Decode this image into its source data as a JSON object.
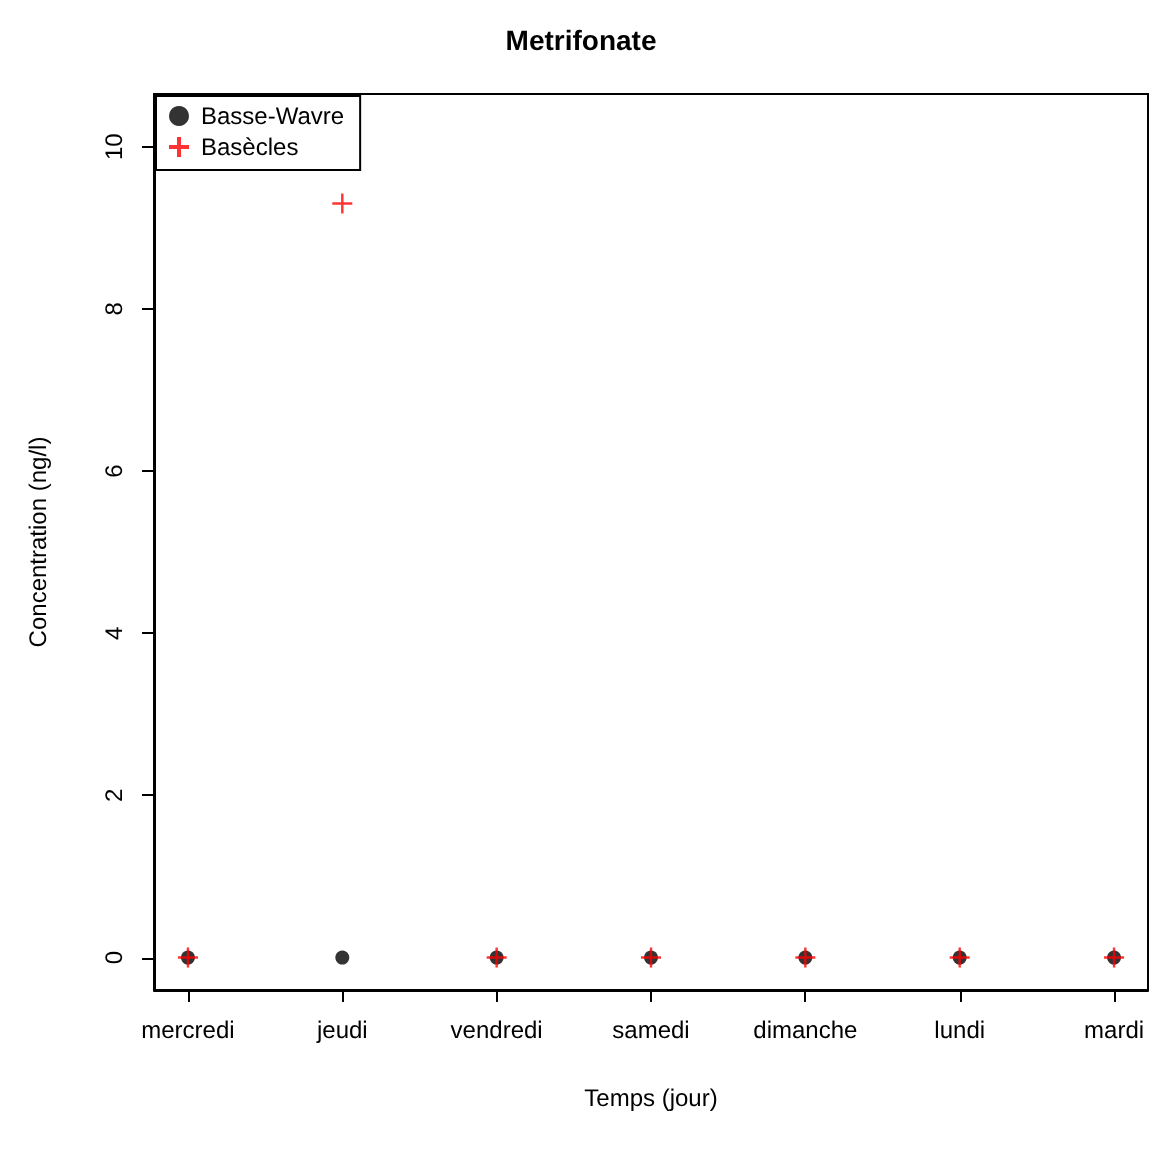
{
  "chart_data": {
    "type": "scatter",
    "title": "Metrifonate",
    "xlabel": "Temps (jour)",
    "ylabel": "Concentration (ng/l)",
    "categories": [
      "mercredi",
      "jeudi",
      "vendredi",
      "samedi",
      "dimanche",
      "lundi",
      "mardi"
    ],
    "series": [
      {
        "name": "Basse-Wavre",
        "color": "#000000",
        "marker": "circle",
        "values": [
          0,
          0,
          0,
          0,
          0,
          0,
          0
        ]
      },
      {
        "name": "Basècles",
        "color": "#ff0000",
        "marker": "cross",
        "values": [
          0,
          9.3,
          0,
          0,
          0,
          0,
          0
        ]
      }
    ],
    "ylim": [
      -0.4,
      10.65
    ],
    "yticks": [
      0,
      2,
      4,
      6,
      8,
      10
    ],
    "grid": false,
    "legend": "top left"
  }
}
